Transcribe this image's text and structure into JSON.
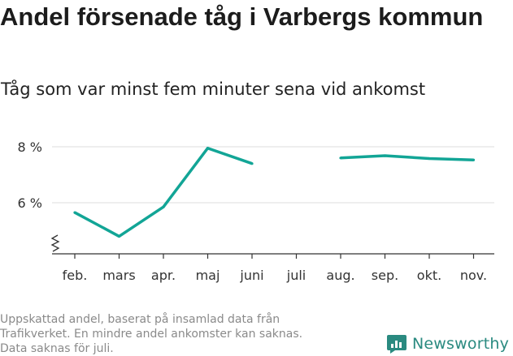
{
  "title": "Andel försenade tåg i Varbergs kommun",
  "subtitle": "Tåg som var minst fem minuter sena vid ankomst",
  "footer": {
    "line1": "Uppskattad andel, baserat på insamlad data från",
    "line2": "Trafikverket. En mindre andel ankomster kan saknas.",
    "line3": "Data saknas för juli."
  },
  "brand": {
    "name": "Newsworthy",
    "icon": "newsworthy-logo-icon"
  },
  "colors": {
    "line": "#12a596",
    "grid": "#dddddd",
    "axis": "#333333",
    "brand": "#2a8a80"
  },
  "chart_data": {
    "type": "line",
    "categories": [
      "feb.",
      "mars",
      "apr.",
      "maj",
      "juni",
      "juli",
      "aug.",
      "sep.",
      "okt.",
      "nov."
    ],
    "series": [
      {
        "values": [
          5.65,
          4.8,
          5.85,
          7.95,
          7.4,
          null,
          7.6,
          7.68,
          7.58,
          7.53
        ]
      }
    ],
    "yticks": [
      6,
      8
    ],
    "ytick_labels": [
      "6 %",
      "8 %"
    ],
    "ylim": [
      4.15,
      8.4
    ],
    "y_axis_break": true,
    "grid": true
  }
}
